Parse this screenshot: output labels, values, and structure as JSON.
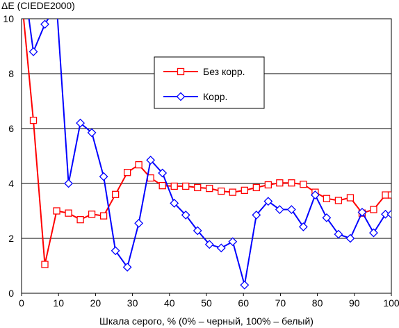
{
  "chart_data": {
    "type": "line",
    "ylabel": "ΔE (CIEDE2000)",
    "xlabel": "Шкала серого, % (0% – черный, 100% – белый)",
    "xlim": [
      0,
      100
    ],
    "ylim": [
      0,
      10
    ],
    "x_ticks": [
      "0",
      "10",
      "20",
      "30",
      "40",
      "50",
      "60",
      "70",
      "80",
      "90",
      "100"
    ],
    "y_ticks": [
      "0",
      "2",
      "4",
      "6",
      "8",
      "10"
    ],
    "grid": "horizontal",
    "legend_position": "upper center",
    "series": [
      {
        "name": "Без корр.",
        "color": "#ff0000",
        "marker": "square",
        "x": [
          0,
          3.2,
          6.3,
          9.5,
          12.7,
          15.9,
          19.0,
          22.2,
          25.4,
          28.6,
          31.7,
          34.9,
          38.1,
          41.3,
          44.4,
          47.6,
          50.8,
          54.0,
          57.1,
          60.3,
          63.5,
          66.7,
          69.8,
          73.0,
          76.2,
          79.4,
          82.5,
          85.7,
          88.9,
          92.1,
          95.2,
          98.4,
          100
        ],
        "y": [
          10.8,
          6.3,
          1.05,
          3.0,
          2.92,
          2.68,
          2.88,
          2.82,
          3.6,
          4.4,
          4.68,
          4.2,
          3.92,
          3.9,
          3.9,
          3.85,
          3.82,
          3.72,
          3.68,
          3.75,
          3.85,
          3.95,
          4.02,
          4.02,
          3.97,
          3.68,
          3.45,
          3.38,
          3.48,
          2.92,
          3.05,
          3.58,
          3.58
        ]
      },
      {
        "name": "Корр.",
        "color": "#0000ff",
        "marker": "diamond",
        "x": [
          0,
          3.2,
          6.3,
          9.5,
          12.7,
          15.9,
          19.0,
          22.2,
          25.4,
          28.6,
          31.7,
          34.9,
          38.1,
          41.3,
          44.4,
          47.6,
          50.8,
          54.0,
          57.1,
          60.3,
          63.5,
          66.7,
          69.8,
          73.0,
          76.2,
          79.4,
          82.5,
          85.7,
          88.9,
          92.1,
          95.2,
          98.4,
          100
        ],
        "y": [
          12.0,
          8.8,
          9.8,
          10.5,
          4.0,
          6.2,
          5.85,
          4.25,
          1.55,
          0.95,
          2.55,
          4.85,
          4.38,
          3.28,
          2.85,
          2.28,
          1.78,
          1.65,
          1.88,
          0.3,
          2.85,
          3.35,
          3.05,
          3.05,
          2.42,
          3.58,
          2.75,
          2.15,
          2.0,
          2.95,
          2.2,
          2.88,
          2.88
        ]
      }
    ]
  }
}
